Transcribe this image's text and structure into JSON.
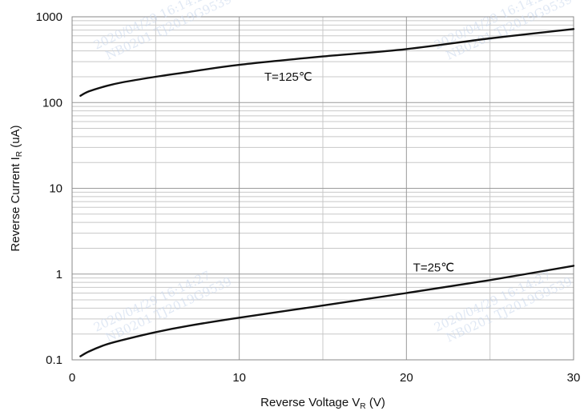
{
  "chart_data": {
    "type": "line",
    "title": "",
    "xlabel": {
      "main": "Reverse Voltage V",
      "sub": "R",
      "tail": " (V)"
    },
    "ylabel": {
      "main": "Reverse Current I",
      "sub": "R",
      "tail": " (uA)"
    },
    "xlim": [
      0,
      30
    ],
    "ylim": [
      0.1,
      1000
    ],
    "yscale": "log",
    "grid": true,
    "x_ticks": [
      0,
      10,
      20,
      30
    ],
    "x_tick_labels": [
      "0",
      "10",
      "20",
      "30"
    ],
    "y_ticks": [
      0.1,
      1,
      10,
      100,
      1000
    ],
    "y_tick_labels": [
      "0.1",
      "1",
      "10",
      "100",
      "1000"
    ],
    "series": [
      {
        "name": "T=125℃",
        "x": [
          0.5,
          1,
          2,
          3,
          5,
          7,
          10,
          15,
          20,
          25,
          30
        ],
        "y": [
          120,
          135,
          155,
          172,
          200,
          228,
          275,
          345,
          420,
          560,
          720
        ]
      },
      {
        "name": "T=25℃",
        "x": [
          0.5,
          1,
          2,
          3,
          5,
          7,
          10,
          15,
          20,
          25,
          30
        ],
        "y": [
          0.11,
          0.125,
          0.15,
          0.17,
          0.21,
          0.25,
          0.31,
          0.43,
          0.6,
          0.85,
          1.25
        ]
      }
    ]
  },
  "watermark": {
    "date": "2020/04/29  16:14:27",
    "code": "NB0201  TJ2019G9539"
  }
}
